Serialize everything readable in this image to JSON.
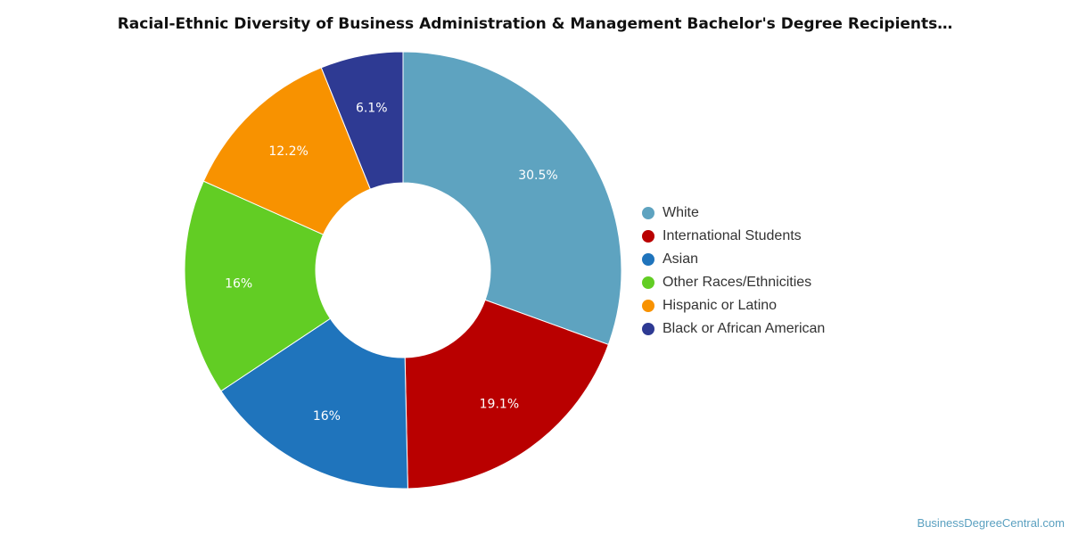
{
  "chart_data": {
    "type": "pie",
    "title": "Racial-Ethnic Diversity of Business Administration & Management Bachelor's Degree Recipients…",
    "categories": [
      "White",
      "International Students",
      "Asian",
      "Other Races/Ethnicities",
      "Hispanic or Latino",
      "Black or African American"
    ],
    "values": [
      30.5,
      19.1,
      16,
      16,
      12.2,
      6.1
    ],
    "data_labels": [
      "30.5%",
      "19.1%",
      "16%",
      "16%",
      "12.2%",
      "6.1%"
    ],
    "colors": [
      "#5ea3c0",
      "#b90000",
      "#1f74bc",
      "#62cd24",
      "#f89200",
      "#2e3a93"
    ],
    "donut": true,
    "legend_position": "right"
  },
  "watermark": "BusinessDegreeCentral.com"
}
